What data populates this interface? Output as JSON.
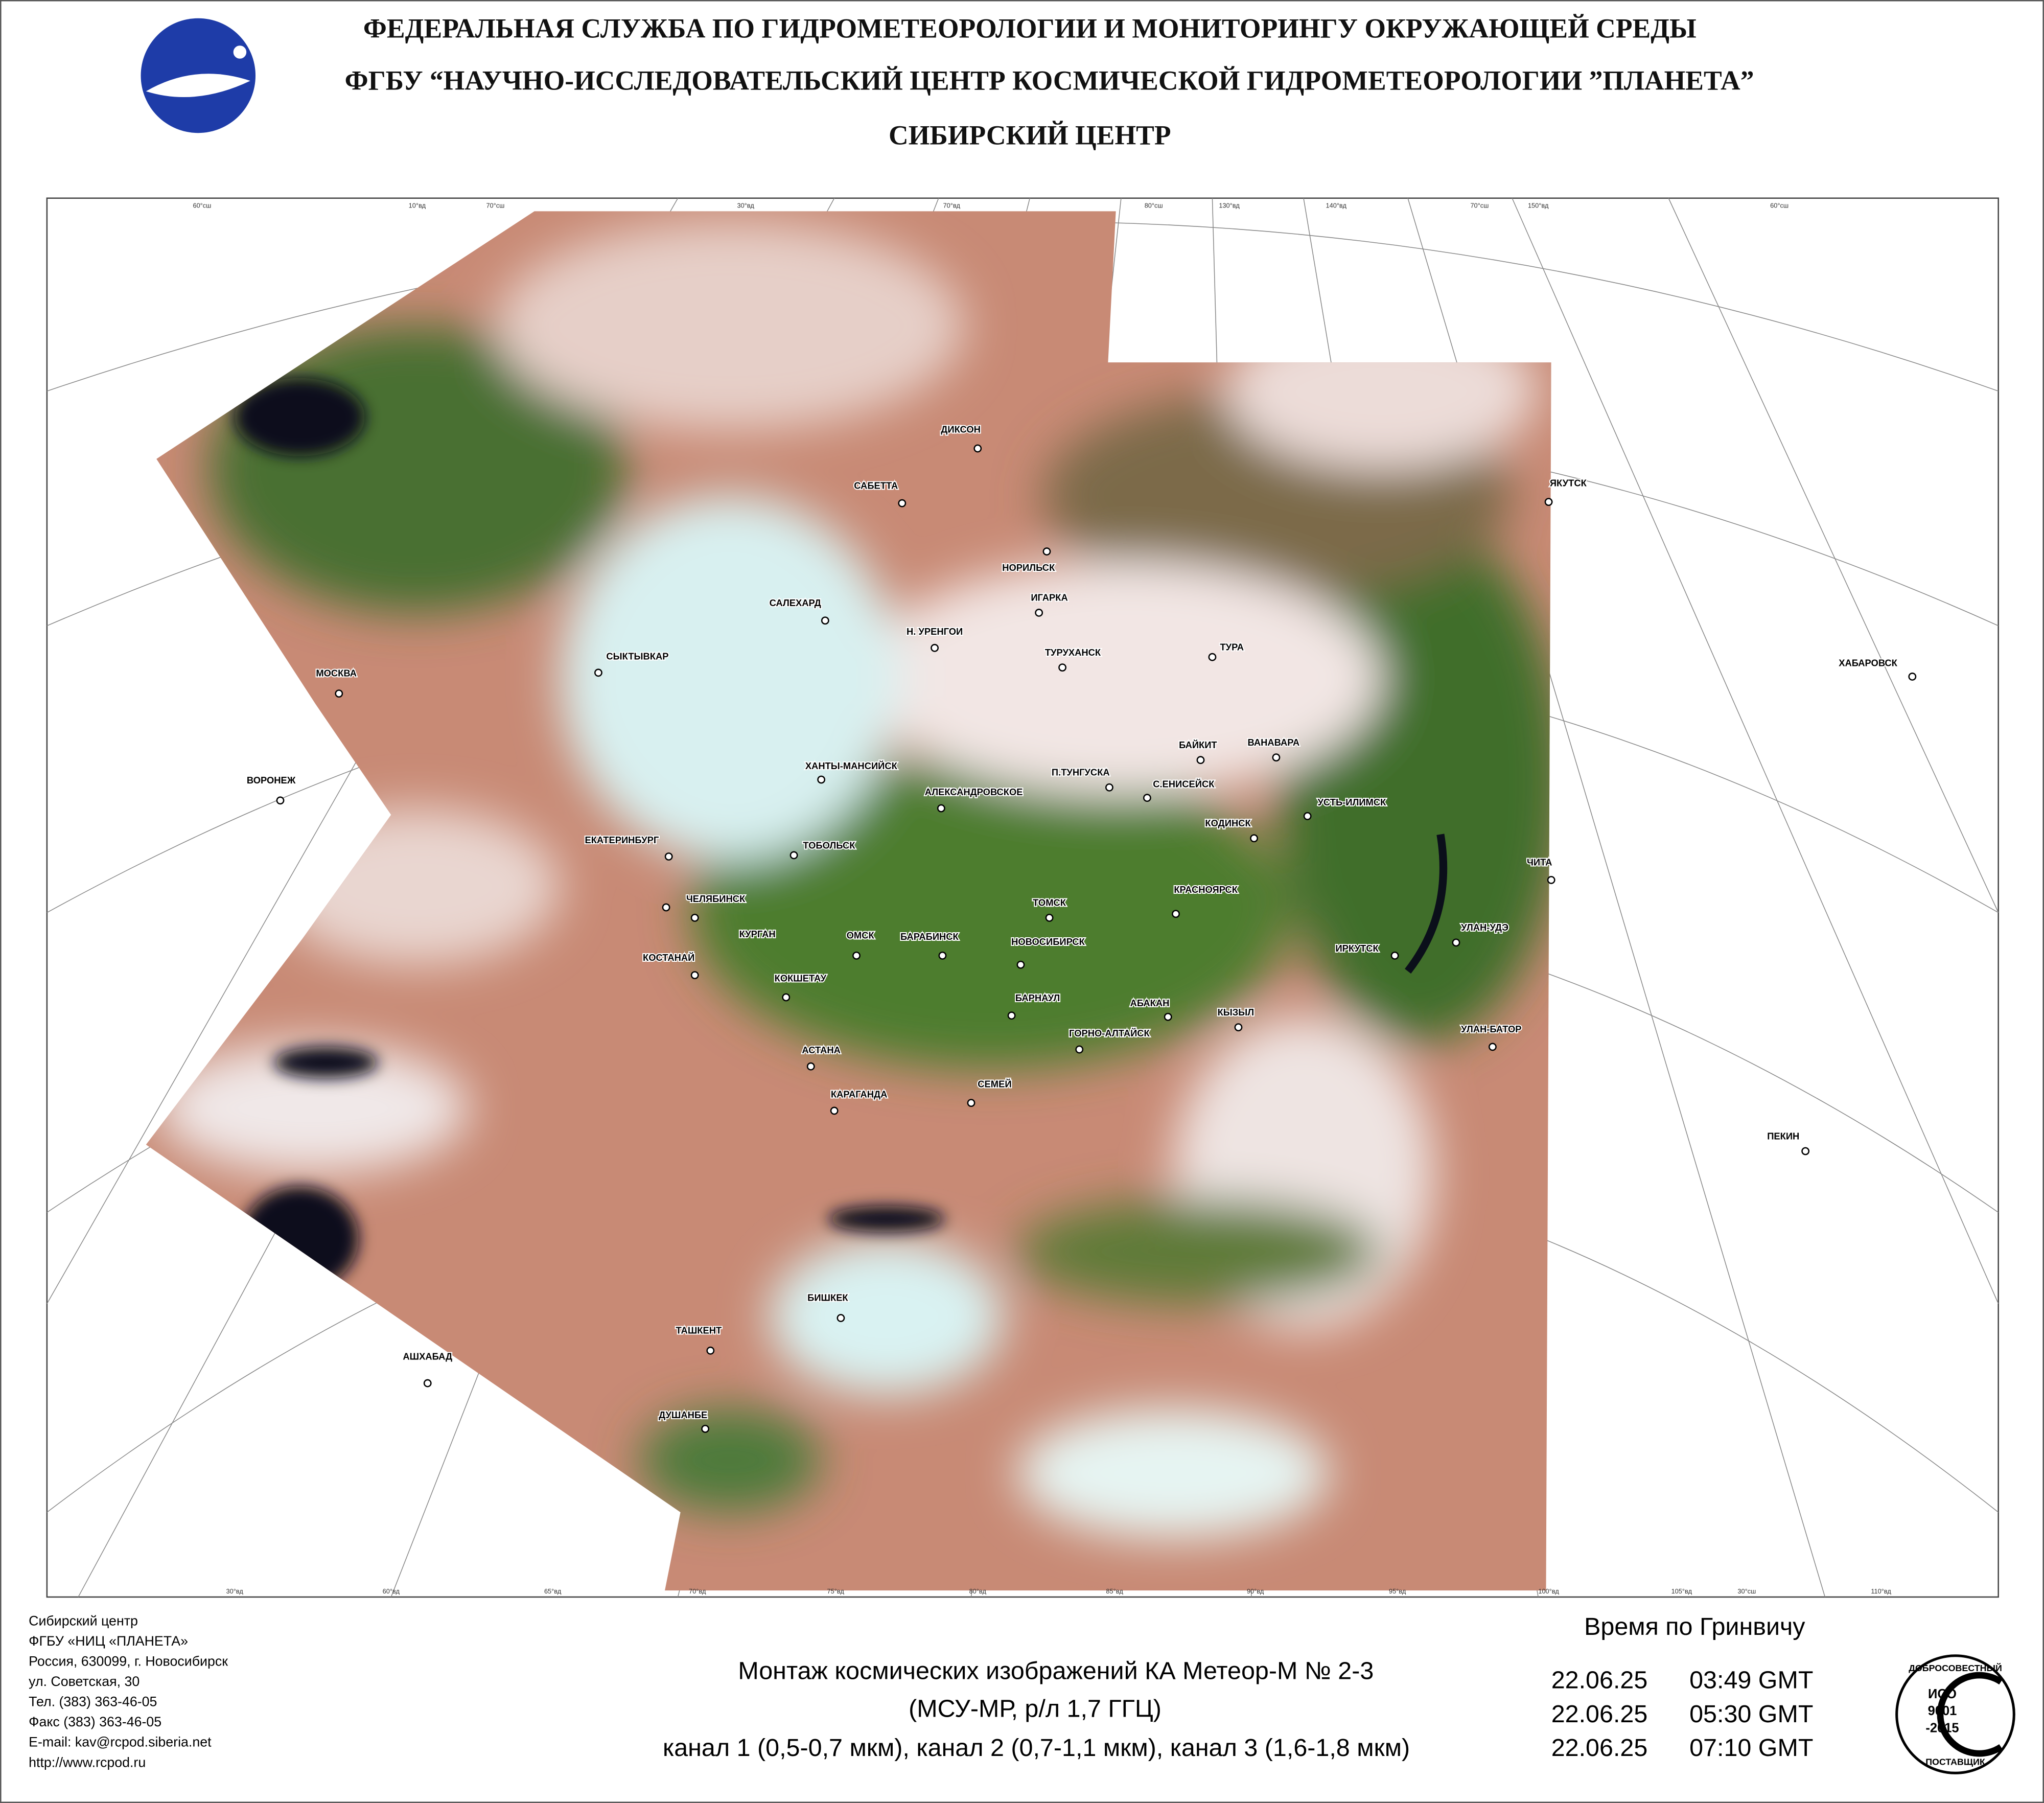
{
  "header": {
    "line1": "ФЕДЕРАЛЬНАЯ СЛУЖБА ПО ГИДРОМЕТЕОРОЛОГИИ И МОНИТОРИНГУ ОКРУЖАЮЩЕЙ СРЕДЫ",
    "line2": "ФГБУ “НАУЧНО-ИССЛЕДОВАТЕЛЬСКИЙ ЦЕНТР КОСМИЧЕСКОЙ ГИДРОМЕТЕОРОЛОГИИ ”ПЛАНЕТА”",
    "line3": "СИБИРСКИЙ  ЦЕНТР"
  },
  "map": {
    "cities": [
      "ДИКСОН",
      "САБЕТТА",
      "НОРИЛЬСК",
      "ЯКУТСК",
      "ИГАРКА",
      "САЛЕХАРД",
      "Н. УРЕНГОИ",
      "ТУРУХАНСК",
      "ТУРА",
      "СЫКТЫВКАР",
      "МОСКВА",
      "ХАБАРОВСК",
      "БАЙКИТ",
      "ВАНАВАРА",
      "ХАНТЫ-МАНСИЙСК",
      "П.ТУНГУСКА",
      "ВОРОНЕЖ",
      "С.ЕНИСЕЙСК",
      "АЛЕКСАНДРОВСКОЕ",
      "УСТЬ-ИЛИМСК",
      "КОДИНСК",
      "ЕКАТЕРИНБУРГ",
      "ТОБОЛЬСК",
      "ЧИТА",
      "ЧЕЛЯБИНСК",
      "КРАСНОЯРСК",
      "ТОМСК",
      "КУРГАН",
      "ОМСК",
      "БАРАБИНСК",
      "НОВОСИБИРСК",
      "ИРКУТСК",
      "УЛАН-УДЭ",
      "КОСТАНАЙ",
      "КОКШЕТАУ",
      "БАРНАУЛ",
      "АБАКАН",
      "КЫЗЫЛ",
      "УЛАН-БАТОР",
      "ГОРНО-АЛТАЙСК",
      "АСТАНА",
      "СЕМЕЙ",
      "КАРАГАНДА",
      "ПЕКИН",
      "БИШКЕК",
      "ТАШКЕНТ",
      "АШХАБАД",
      "ДУШАНБЕ"
    ],
    "top_labels": [
      "60°сш",
      "10°вд",
      "70°сш",
      "30°вд",
      "70°вд",
      "80°сш",
      "130°вд",
      "140°вд",
      "70°сш",
      "150°вд",
      "60°сш"
    ],
    "bottom_labels": [
      "30°вд",
      "60°вд",
      "65°вд",
      "70°вд",
      "75°вд",
      "80°вд",
      "85°вд",
      "90°вд",
      "95°вд",
      "100°вд",
      "105°вд",
      "30°сш",
      "110°вд"
    ]
  },
  "footer": {
    "contacts": [
      "Сибирский центр",
      "ФГБУ «НИЦ «ПЛАНЕТА»",
      "Россия, 630099, г. Новосибирск",
      "ул. Советская, 30",
      "Тел. (383) 363-46-05",
      "Факс (383) 363-46-05",
      "E-mail: kav@rcpod.siberia.net",
      "http://www.rcpod.ru"
    ],
    "caption": [
      "Монтаж космических изображений КА Метеор-М № 2-3",
      "(МСУ-МР, р/л 1,7 ГГЦ)",
      "канал 1 (0,5-0,7 мкм), канал 2 (0,7-1,1 мкм), канал 3 (1,6-1,8 мкм)"
    ],
    "time_title": "Время по Гринвичу",
    "times": [
      {
        "date": "22.06.25",
        "time": "03:49 GMT"
      },
      {
        "date": "22.06.25",
        "time": "05:30 GMT"
      },
      {
        "date": "22.06.25",
        "time": "07:10 GMT"
      }
    ],
    "badge": {
      "top": "ДОБРОСОВЕСТНЫЙ",
      "iso": "ИСО",
      "num": "9001",
      "year": "-2015",
      "bottom": "ПОСТАВЩИК"
    }
  }
}
